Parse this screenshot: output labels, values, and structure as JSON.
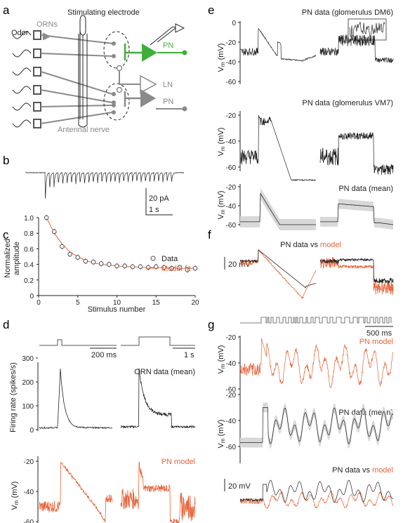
{
  "panels": {
    "a": "a",
    "b": "b",
    "c": "c",
    "d": "d",
    "e": "e",
    "f": "f",
    "g": "g"
  },
  "a": {
    "title": "Stimulating electrode",
    "odor": "Odor",
    "orns": "ORNs",
    "pn1": "PN",
    "ln": "LN",
    "pn2": "PN",
    "nerve": "Antennal nerve"
  },
  "b": {
    "scale_y": "20 pA",
    "scale_x": "1 s"
  },
  "c": {
    "ylabel1": "Normalized",
    "ylabel2": "amplitude",
    "xlabel": "Stimulus number",
    "legend_data": "Data",
    "legend_model": "Model fit",
    "yticks": [
      "0",
      "0.2",
      "0.4",
      "0.6",
      "0.8",
      "1.0"
    ],
    "xticks": [
      "0",
      "5",
      "10",
      "15",
      "20"
    ]
  },
  "d": {
    "scale_short": "200 ms",
    "scale_long": "1 s",
    "ylabel": "Firing rate (spikes/s)",
    "title": "ORN data (mean)",
    "yticks": [
      "0",
      "100",
      "200",
      "300"
    ],
    "model_title": "PN model",
    "vm_ticks": [
      "-20",
      "-40",
      "-60"
    ],
    "vm_label": "V",
    "vm_sub": "m",
    "vm_unit": " (mV)"
  },
  "e": {
    "t1": "PN data (glomerulus DM6)",
    "t2": "PN data (glomerulus VM7)",
    "t3": "PN data (mean)",
    "ticks1": [
      "0",
      "-20",
      "-40",
      "-60"
    ],
    "ticks2": [
      "-20",
      "-40",
      "-60"
    ],
    "ticks3": [
      "-20",
      "-40",
      "-60"
    ]
  },
  "f": {
    "title_a": "PN data vs ",
    "title_b": "model",
    "scale": "20 mV"
  },
  "g": {
    "scale": "500 ms",
    "model_title": "PN model",
    "data_title": "PN data (mean)",
    "vs_a": "PN data vs ",
    "vs_b": "model",
    "scale_mv": "20 mV",
    "ticks1": [
      "-20",
      "-40",
      "-60"
    ],
    "ticks2": [
      "-20",
      "-40",
      "-60"
    ]
  },
  "colors": {
    "model": "#e8643a",
    "pn": "#3fae3a",
    "data": "#222222",
    "grey": "#8a8a8a"
  },
  "chart_data": [
    {
      "type": "scatter",
      "panel": "c",
      "title": "",
      "xlabel": "Stimulus number",
      "ylabel": "Normalized amplitude",
      "xlim": [
        0,
        20
      ],
      "ylim": [
        0,
        1.0
      ],
      "series": [
        {
          "name": "Data",
          "x": [
            1,
            2,
            3,
            4,
            5,
            6,
            7,
            8,
            9,
            10,
            11,
            12,
            13,
            14,
            15,
            16,
            17,
            18,
            19,
            20
          ],
          "values": [
            1.0,
            0.82,
            0.63,
            0.53,
            0.49,
            0.44,
            0.43,
            0.41,
            0.4,
            0.38,
            0.38,
            0.37,
            0.37,
            0.36,
            0.37,
            0.36,
            0.35,
            0.36,
            0.33,
            0.35
          ]
        },
        {
          "name": "Model fit",
          "x": [
            1,
            2,
            3,
            4,
            5,
            6,
            7,
            8,
            9,
            10,
            11,
            12,
            13,
            14,
            15,
            16,
            17,
            18,
            19,
            20
          ],
          "values": [
            1.0,
            0.8,
            0.66,
            0.56,
            0.5,
            0.45,
            0.42,
            0.4,
            0.39,
            0.38,
            0.37,
            0.37,
            0.36,
            0.36,
            0.36,
            0.355,
            0.355,
            0.35,
            0.35,
            0.35
          ]
        }
      ]
    }
  ]
}
